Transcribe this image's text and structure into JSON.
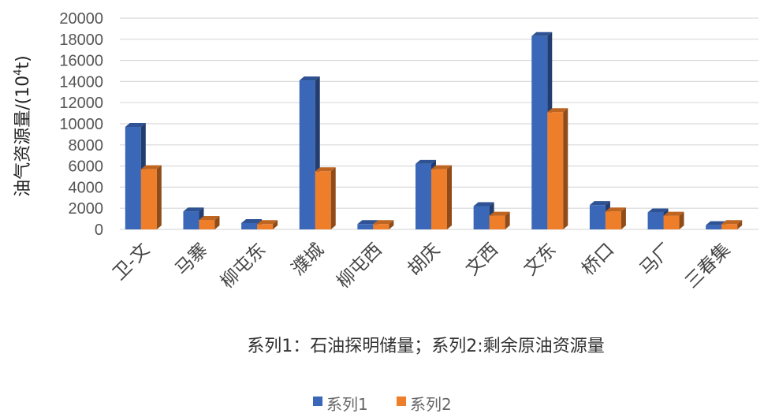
{
  "chart_data": {
    "type": "bar",
    "categories": [
      "卫-文",
      "马寨",
      "柳屯东",
      "濮城",
      "柳屯西",
      "胡庆",
      "文西",
      "文东",
      "桥口",
      "马厂",
      "三春集"
    ],
    "series": [
      {
        "name": "系列1",
        "color": "#3a67b8",
        "values": [
          9700,
          1700,
          600,
          14100,
          500,
          6200,
          2200,
          18300,
          2300,
          1600,
          400
        ]
      },
      {
        "name": "系列2",
        "color": "#ef7e2a",
        "values": [
          5700,
          900,
          500,
          5500,
          500,
          5700,
          1300,
          11100,
          1700,
          1300,
          500
        ]
      }
    ],
    "ylim": [
      0,
      20000
    ],
    "yticks": [
      0,
      2000,
      4000,
      6000,
      8000,
      10000,
      12000,
      14000,
      16000,
      18000,
      20000
    ],
    "ylabel_main": "油气资源量/(10",
    "ylabel_sup": "4",
    "ylabel_tail": "t)",
    "caption": "系列1：石油探明储量；系列2:剩余原油资源量",
    "grid": true,
    "legend_position": "bottom"
  }
}
